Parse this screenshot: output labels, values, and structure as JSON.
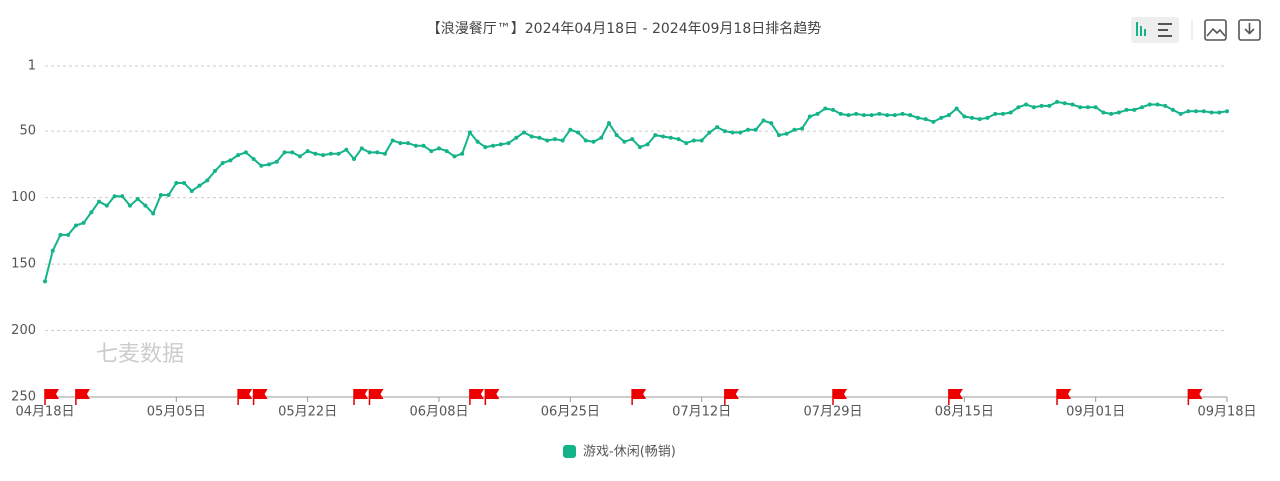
{
  "chart_data": {
    "type": "line",
    "title": "【浪漫餐厅™】2024年04月18日 - 2024年09月18日排名趋势",
    "watermark": "七麦数据",
    "categories": [
      "04月18日",
      null,
      null,
      null,
      null,
      null,
      null,
      null,
      null,
      null,
      null,
      null,
      null,
      null,
      null,
      null,
      null,
      "05月05日",
      null,
      null,
      null,
      null,
      null,
      null,
      null,
      null,
      null,
      null,
      null,
      null,
      null,
      null,
      null,
      null,
      "05月22日",
      null,
      null,
      null,
      null,
      null,
      null,
      null,
      null,
      null,
      null,
      null,
      null,
      null,
      null,
      null,
      null,
      "06月08日",
      null,
      null,
      null,
      null,
      null,
      null,
      null,
      null,
      null,
      null,
      null,
      null,
      null,
      null,
      null,
      null,
      "06月25日",
      null,
      null,
      null,
      null,
      null,
      null,
      null,
      null,
      null,
      null,
      null,
      null,
      null,
      null,
      null,
      null,
      "07月12日",
      null,
      null,
      null,
      null,
      null,
      null,
      null,
      null,
      null,
      null,
      null,
      null,
      null,
      null,
      null,
      null,
      "07月29日",
      null,
      null,
      null,
      null,
      null,
      null,
      null,
      null,
      null,
      null,
      null,
      null,
      null,
      null,
      null,
      null,
      "08月15日",
      null,
      null,
      null,
      null,
      null,
      null,
      null,
      null,
      null,
      null,
      null,
      null,
      null,
      null,
      null,
      null,
      "09月01日",
      null,
      null,
      null,
      null,
      null,
      null,
      null,
      null,
      null,
      null,
      null,
      null,
      null,
      null,
      null,
      null,
      "09月18日"
    ],
    "series": [
      {
        "name": "游戏-休闲(畅销)",
        "color": "#14b38a",
        "values": [
          163,
          140,
          128,
          128,
          121,
          119,
          111,
          103,
          106,
          99,
          99,
          106,
          101,
          106,
          112,
          98,
          98,
          89,
          89,
          95,
          91,
          87,
          80,
          74,
          72,
          68,
          66,
          71,
          76,
          75,
          73,
          66,
          66,
          69,
          65,
          67,
          68,
          67,
          67,
          64,
          71,
          63,
          66,
          66,
          67,
          57,
          59,
          59,
          61,
          61,
          65,
          63,
          65,
          69,
          67,
          51,
          58,
          62,
          61,
          60,
          59,
          55,
          51,
          54,
          55,
          57,
          56,
          57,
          49,
          51,
          57,
          58,
          55,
          44,
          53,
          58,
          56,
          62,
          60,
          53,
          54,
          55,
          56,
          59,
          57,
          57,
          51,
          47,
          50,
          51,
          51,
          49,
          49,
          42,
          44,
          53,
          52,
          49,
          48,
          39,
          37,
          33,
          34,
          37,
          38,
          37,
          38,
          38,
          37,
          38,
          38,
          37,
          38,
          40,
          41,
          43,
          40,
          38,
          33,
          39,
          40,
          41,
          40,
          37,
          37,
          36,
          32,
          30,
          32,
          31,
          31,
          28,
          29,
          30,
          32,
          32,
          32,
          36,
          37,
          36,
          34,
          34,
          32,
          30,
          30,
          31,
          34,
          37,
          35,
          35,
          35,
          36,
          36,
          35
        ]
      }
    ],
    "flags": [
      0,
      4,
      25,
      27,
      40,
      42,
      55,
      57,
      76,
      88,
      102,
      117,
      131,
      148
    ],
    "ylim": [
      250,
      1
    ],
    "yticks": [
      1,
      50,
      100,
      150,
      200,
      250
    ],
    "grid": true
  }
}
